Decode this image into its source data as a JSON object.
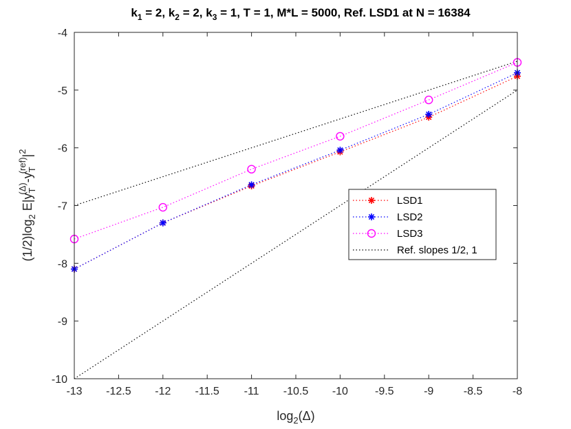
{
  "chart_data": {
    "type": "line",
    "title": {
      "k1": "k",
      "k1_sub": "1",
      "k1_val": " = 2, ",
      "k2": "k",
      "k2_sub": "2",
      "k2_val": " = 2, ",
      "k3": "k",
      "k3_sub": "3",
      "k3_val": " = 1, T = 1, M*L  = 5000, Ref. LSD1 at N = 16384"
    },
    "xlabel": {
      "main": "log",
      "sub": "2",
      "rest": "(Δ)"
    },
    "ylabel": {
      "p1": "(1/2)log",
      "p1_sub": "2",
      "p2": " E|y",
      "p2_sub": "T",
      "p2_sup": "(Δ)",
      "p3": "-y",
      "p3_sub": "T",
      "p3_sup": "(ref)",
      "p4": "|",
      "p4_sup": "2"
    },
    "xlim": [
      -13,
      -8
    ],
    "ylim": [
      -10,
      -4
    ],
    "xticks": [
      -13,
      -12.5,
      -12,
      -11.5,
      -11,
      -10.5,
      -10,
      -9.5,
      -9,
      -8.5,
      -8
    ],
    "xtick_labels": [
      "-13",
      "-12.5",
      "-12",
      "-11.5",
      "-11",
      "-10.5",
      "-10",
      "-9.5",
      "-9",
      "-8.5",
      "-8"
    ],
    "yticks": [
      -10,
      -9,
      -8,
      -7,
      -6,
      -5,
      -4
    ],
    "ytick_labels": [
      "-10",
      "-9",
      "-8",
      "-7",
      "-6",
      "-5",
      "-4"
    ],
    "x": [
      -13,
      -12,
      -11,
      -10,
      -9,
      -8
    ],
    "series": [
      {
        "name": "LSD1",
        "color": "#ff0000",
        "marker": "asterisk",
        "values": [
          -8.1,
          -7.3,
          -6.66,
          -6.07,
          -5.47,
          -4.76
        ]
      },
      {
        "name": "LSD2",
        "color": "#0000ff",
        "marker": "asterisk",
        "values": [
          -8.1,
          -7.3,
          -6.64,
          -6.04,
          -5.42,
          -4.7
        ]
      },
      {
        "name": "LSD3",
        "color": "#ff00ff",
        "marker": "circle",
        "values": [
          -7.58,
          -7.03,
          -6.37,
          -5.8,
          -5.17,
          -4.52
        ]
      }
    ],
    "reference": {
      "name": "Ref. slopes 1/2, 1",
      "color": "#000000",
      "lines": [
        {
          "x": [
            -13,
            -8
          ],
          "y": [
            -7.0,
            -4.5
          ]
        },
        {
          "x": [
            -13,
            -8
          ],
          "y": [
            -10.0,
            -5.0
          ]
        }
      ]
    },
    "legend_position": "center-right",
    "grid": false
  }
}
